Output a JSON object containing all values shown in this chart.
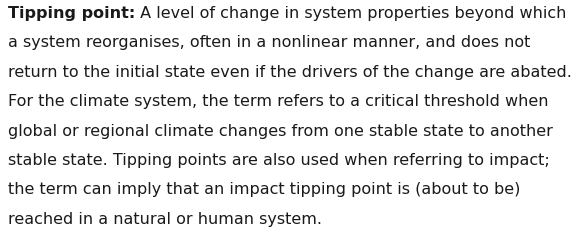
{
  "background_color": "#ffffff",
  "text_color": "#1a1a1a",
  "bold_term": "Tipping point:",
  "font_size": 11.5,
  "figwidth": 5.82,
  "figheight": 2.46,
  "dpi": 100,
  "lines": [
    {
      "bold": "Tipping point:",
      "regular": " A level of change in system properties beyond which"
    },
    {
      "bold": "",
      "regular": "a system reorganises, often in a nonlinear manner, and does not"
    },
    {
      "bold": "",
      "regular": "return to the initial state even if the drivers of the change are abated."
    },
    {
      "bold": "",
      "regular": "For the climate system, the term refers to a critical threshold when"
    },
    {
      "bold": "",
      "regular": "global or regional climate changes from one stable state to another"
    },
    {
      "bold": "",
      "regular": "stable state. Tipping points are also used when referring to impact;"
    },
    {
      "bold": "",
      "regular": "the term can imply that an impact tipping point is (about to be)"
    },
    {
      "bold": "",
      "regular": "reached in a natural or human system."
    }
  ]
}
